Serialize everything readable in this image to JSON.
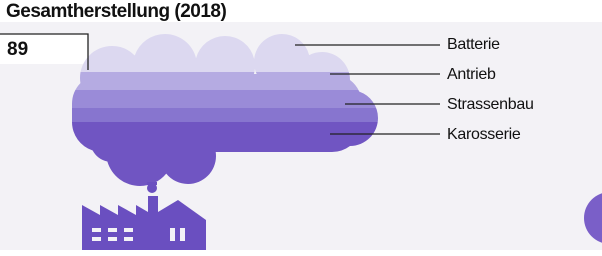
{
  "title": "Gesamtherstellung (2018)",
  "value": "89",
  "legend": [
    "Batterie",
    "Antrieb",
    "Strassenbau",
    "Karosserie"
  ]
}
